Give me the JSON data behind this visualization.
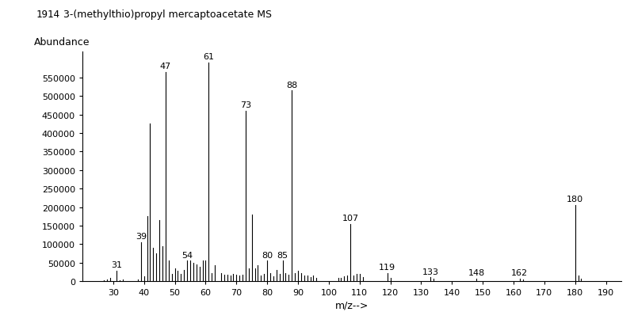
{
  "title_id": "1914",
  "title_name": "3-(methylthio)propyl mercaptoacetate MS",
  "xlabel": "m/z-->",
  "ylabel": "Abundance",
  "xlim": [
    20,
    195
  ],
  "ylim": [
    0,
    620000
  ],
  "xticks": [
    30,
    40,
    50,
    60,
    70,
    80,
    90,
    100,
    110,
    120,
    130,
    140,
    150,
    160,
    170,
    180,
    190
  ],
  "yticks": [
    0,
    50000,
    100000,
    150000,
    200000,
    250000,
    300000,
    350000,
    400000,
    450000,
    500000,
    550000
  ],
  "peaks": [
    [
      27,
      3000
    ],
    [
      28,
      5000
    ],
    [
      29,
      8000
    ],
    [
      31,
      28000
    ],
    [
      32,
      3000
    ],
    [
      33,
      5000
    ],
    [
      38,
      5000
    ],
    [
      39,
      105000
    ],
    [
      40,
      12000
    ],
    [
      41,
      175000
    ],
    [
      42,
      425000
    ],
    [
      43,
      90000
    ],
    [
      44,
      75000
    ],
    [
      45,
      165000
    ],
    [
      46,
      95000
    ],
    [
      47,
      565000
    ],
    [
      48,
      55000
    ],
    [
      49,
      20000
    ],
    [
      50,
      35000
    ],
    [
      51,
      28000
    ],
    [
      52,
      20000
    ],
    [
      53,
      30000
    ],
    [
      54,
      55000
    ],
    [
      55,
      55000
    ],
    [
      56,
      50000
    ],
    [
      57,
      45000
    ],
    [
      58,
      38000
    ],
    [
      59,
      55000
    ],
    [
      60,
      55000
    ],
    [
      61,
      590000
    ],
    [
      62,
      22000
    ],
    [
      63,
      42000
    ],
    [
      65,
      22000
    ],
    [
      66,
      18000
    ],
    [
      67,
      18000
    ],
    [
      68,
      15000
    ],
    [
      69,
      20000
    ],
    [
      70,
      18000
    ],
    [
      71,
      15000
    ],
    [
      72,
      18000
    ],
    [
      73,
      460000
    ],
    [
      74,
      35000
    ],
    [
      75,
      180000
    ],
    [
      76,
      35000
    ],
    [
      77,
      42000
    ],
    [
      78,
      15000
    ],
    [
      79,
      20000
    ],
    [
      80,
      55000
    ],
    [
      81,
      22000
    ],
    [
      82,
      12000
    ],
    [
      83,
      30000
    ],
    [
      84,
      20000
    ],
    [
      85,
      55000
    ],
    [
      86,
      22000
    ],
    [
      87,
      18000
    ],
    [
      88,
      515000
    ],
    [
      89,
      22000
    ],
    [
      90,
      28000
    ],
    [
      91,
      22000
    ],
    [
      92,
      15000
    ],
    [
      93,
      15000
    ],
    [
      94,
      10000
    ],
    [
      95,
      15000
    ],
    [
      96,
      8000
    ],
    [
      103,
      8000
    ],
    [
      104,
      8000
    ],
    [
      105,
      12000
    ],
    [
      106,
      15000
    ],
    [
      107,
      155000
    ],
    [
      108,
      15000
    ],
    [
      109,
      20000
    ],
    [
      110,
      20000
    ],
    [
      111,
      10000
    ],
    [
      119,
      22000
    ],
    [
      120,
      8000
    ],
    [
      133,
      10000
    ],
    [
      134,
      6000
    ],
    [
      148,
      6000
    ],
    [
      162,
      6000
    ],
    [
      163,
      4000
    ],
    [
      180,
      205000
    ],
    [
      181,
      15000
    ],
    [
      182,
      6000
    ]
  ],
  "labeled_peaks": [
    31,
    39,
    47,
    54,
    61,
    73,
    80,
    85,
    88,
    107,
    119,
    133,
    148,
    162,
    180
  ],
  "background_color": "#ffffff",
  "bar_color": "#000000",
  "title_fontsize": 9,
  "axis_label_fontsize": 9,
  "tick_fontsize": 8,
  "peak_label_fontsize": 8
}
